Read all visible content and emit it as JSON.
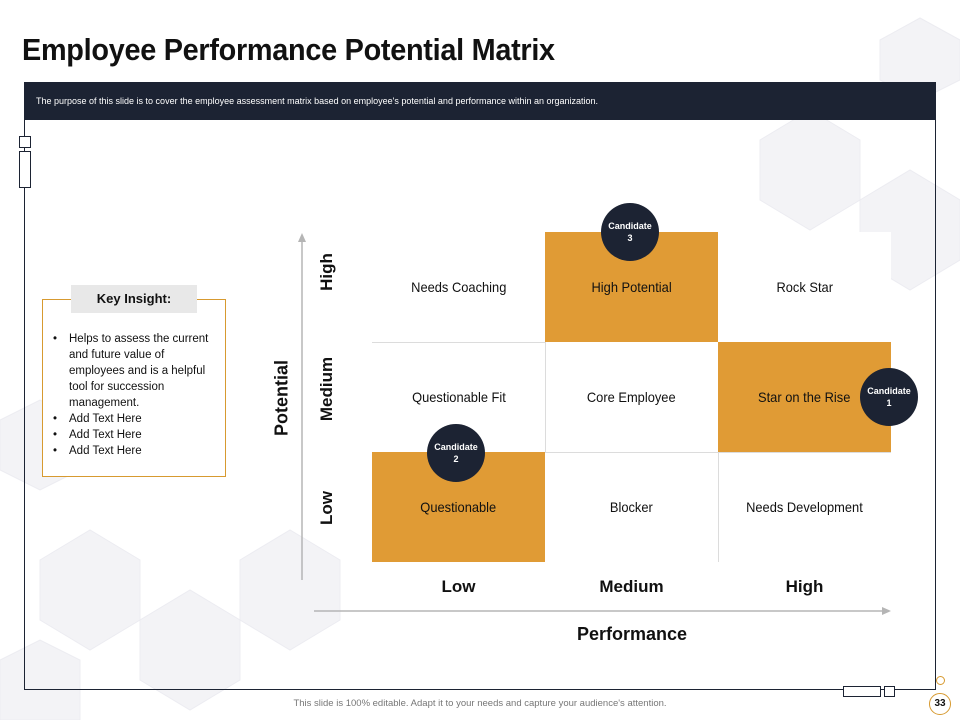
{
  "slide": {
    "title": "Employee Performance Potential Matrix",
    "subtitle": "The purpose of this slide is to cover the employee assessment matrix based on employee's potential and performance within an organization.",
    "footer": "This slide is 100% editable. Adapt it to your needs and capture your audience's attention.",
    "page_number": "33"
  },
  "key_insight": {
    "heading": "Key Insight:",
    "items": [
      "Helps to assess the current and future value of employees and is a helpful tool for succession management.",
      "Add Text Here",
      "Add Text Here",
      "Add Text Here"
    ]
  },
  "matrix": {
    "y_axis_title": "Potential",
    "x_axis_title": "Performance",
    "rows": [
      "High",
      "Medium",
      "Low"
    ],
    "columns": [
      "Low",
      "Medium",
      "High"
    ],
    "cells": [
      [
        {
          "label": "Needs Coaching",
          "highlight": false
        },
        {
          "label": "High Potential",
          "highlight": true
        },
        {
          "label": "Rock Star",
          "highlight": false
        }
      ],
      [
        {
          "label": "Questionable Fit",
          "highlight": false
        },
        {
          "label": "Core Employee",
          "highlight": false
        },
        {
          "label": "Star on the Rise",
          "highlight": true
        }
      ],
      [
        {
          "label": "Questionable",
          "highlight": true
        },
        {
          "label": "Blocker",
          "highlight": false
        },
        {
          "label": "Needs Development",
          "highlight": false
        }
      ]
    ],
    "candidates": [
      {
        "line1": "Candidate",
        "line2": "1"
      },
      {
        "line1": "Candidate",
        "line2": "2"
      },
      {
        "line1": "Candidate",
        "line2": "3"
      }
    ]
  },
  "colors": {
    "navy": "#1c2333",
    "accent": "#e09b35",
    "accent_border": "#d79a30"
  }
}
